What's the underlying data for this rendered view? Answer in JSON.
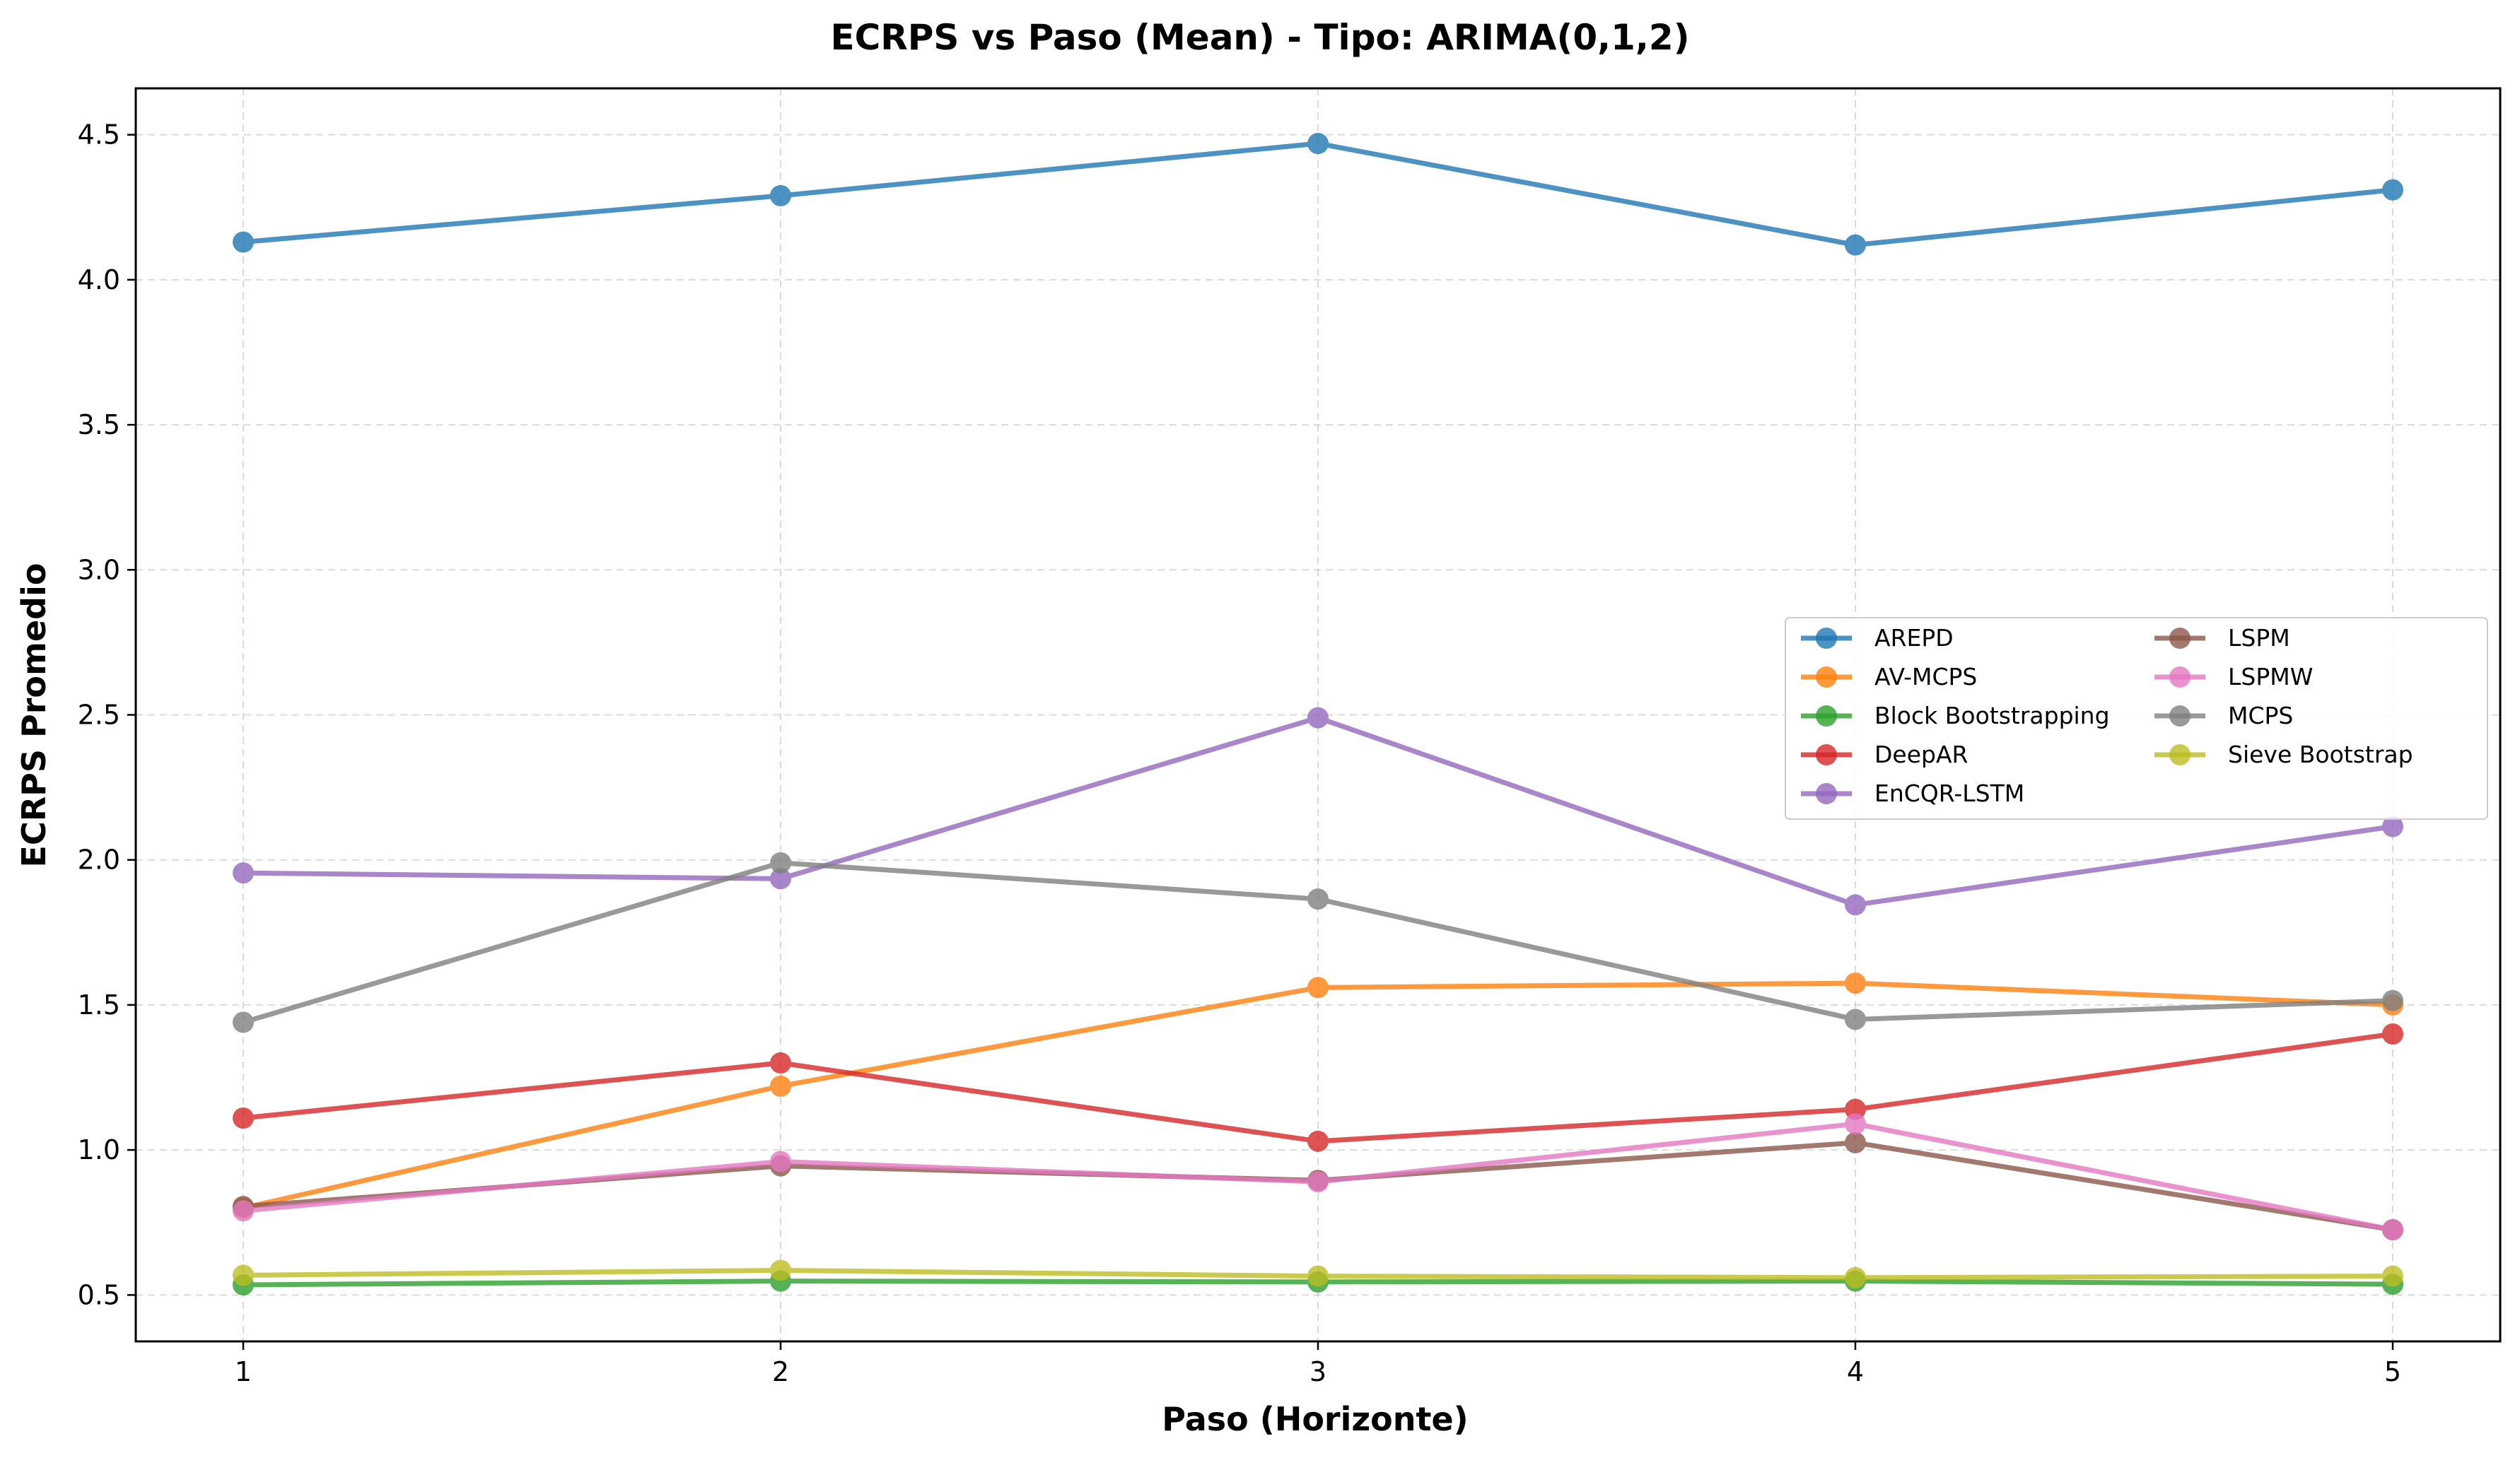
{
  "chart_data": {
    "type": "line",
    "title": "ECRPS vs Paso (Mean) - Tipo: ARIMA(0,1,2)",
    "xlabel": "Paso (Horizonte)",
    "ylabel": "ECRPS Promedio",
    "x": [
      1,
      2,
      3,
      4,
      5
    ],
    "x_tick_labels": [
      "1",
      "2",
      "3",
      "4",
      "5"
    ],
    "xlim": [
      0.8,
      5.2
    ],
    "ylim": [
      0.34,
      4.66
    ],
    "y_ticks": [
      0.5,
      1.0,
      1.5,
      2.0,
      2.5,
      3.0,
      3.5,
      4.0,
      4.5
    ],
    "y_tick_labels": [
      "0.5",
      "1.0",
      "1.5",
      "2.0",
      "2.5",
      "3.0",
      "3.5",
      "4.0",
      "4.5"
    ],
    "grid": true,
    "legend_position": "center-right",
    "legend_columns": 2,
    "series": [
      {
        "name": "AREPD",
        "color": "#1f77b4",
        "values": [
          4.13,
          4.29,
          4.47,
          4.12,
          4.31
        ]
      },
      {
        "name": "AV-MCPS",
        "color": "#ff7f0e",
        "values": [
          0.8,
          1.22,
          1.56,
          1.575,
          1.5
        ]
      },
      {
        "name": "Block Bootstrapping",
        "color": "#2ca02c",
        "values": [
          0.535,
          0.548,
          0.545,
          0.548,
          0.537
        ]
      },
      {
        "name": "DeepAR",
        "color": "#d62728",
        "values": [
          1.11,
          1.3,
          1.03,
          1.14,
          1.4
        ]
      },
      {
        "name": "EnCQR-LSTM",
        "color": "#9467bd",
        "values": [
          1.955,
          1.935,
          2.49,
          1.845,
          2.115
        ]
      },
      {
        "name": "LSPM",
        "color": "#8c564b",
        "values": [
          0.805,
          0.945,
          0.895,
          1.025,
          0.725
        ]
      },
      {
        "name": "LSPMW",
        "color": "#e377c2",
        "values": [
          0.79,
          0.96,
          0.89,
          1.09,
          0.725
        ]
      },
      {
        "name": "MCPS",
        "color": "#7f7f7f",
        "values": [
          1.44,
          1.99,
          1.865,
          1.45,
          1.515
        ]
      },
      {
        "name": "Sieve Bootstrap",
        "color": "#bcbd22",
        "values": [
          0.568,
          0.585,
          0.565,
          0.56,
          0.565
        ]
      }
    ]
  }
}
